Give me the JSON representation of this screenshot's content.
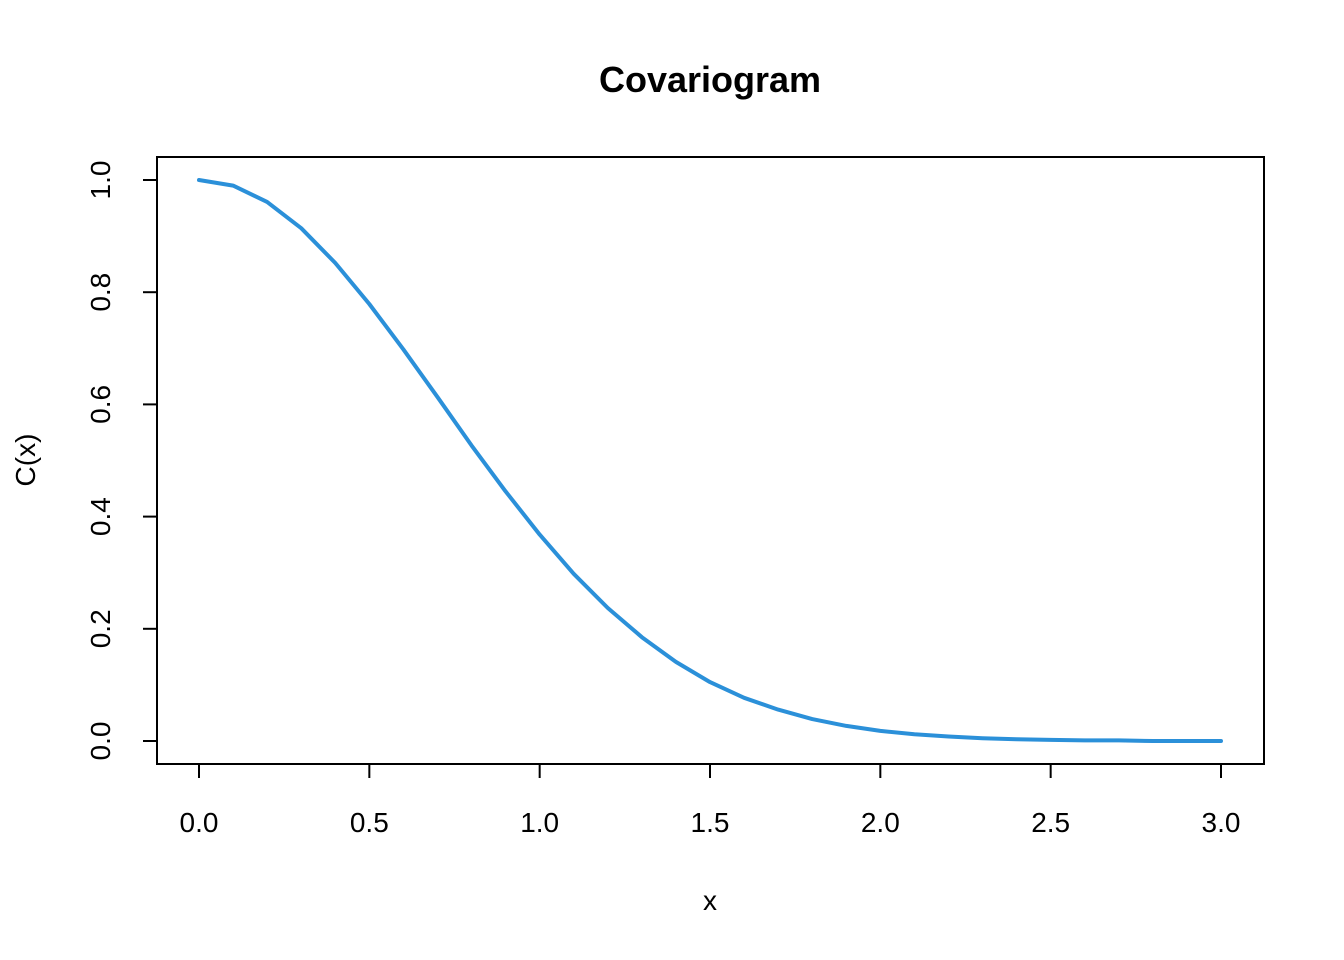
{
  "chart_data": {
    "type": "line",
    "title": "Covariogram",
    "xlabel": "x",
    "ylabel": "C(x)",
    "xlim": [
      0.0,
      3.0
    ],
    "ylim": [
      0.0,
      1.0
    ],
    "x_ticks": [
      "0.0",
      "0.5",
      "1.0",
      "1.5",
      "2.0",
      "2.5",
      "3.0"
    ],
    "y_ticks": [
      "0.0",
      "0.2",
      "0.4",
      "0.6",
      "0.8",
      "1.0"
    ],
    "grid": false,
    "series": [
      {
        "color": "#2b90d9",
        "x": [
          0.0,
          0.1,
          0.2,
          0.3,
          0.4,
          0.5,
          0.6,
          0.7,
          0.8,
          0.9,
          1.0,
          1.1,
          1.2,
          1.3,
          1.4,
          1.5,
          1.6,
          1.7,
          1.8,
          1.9,
          2.0,
          2.1,
          2.2,
          2.3,
          2.4,
          2.5,
          2.6,
          2.7,
          2.8,
          2.9,
          3.0
        ],
        "values": [
          1.0,
          0.99,
          0.961,
          0.914,
          0.852,
          0.779,
          0.698,
          0.613,
          0.527,
          0.445,
          0.368,
          0.298,
          0.237,
          0.185,
          0.141,
          0.105,
          0.077,
          0.056,
          0.039,
          0.027,
          0.018,
          0.012,
          0.008,
          0.005,
          0.003,
          0.002,
          0.001,
          0.001,
          0.0,
          0.0,
          0.0
        ]
      }
    ]
  }
}
